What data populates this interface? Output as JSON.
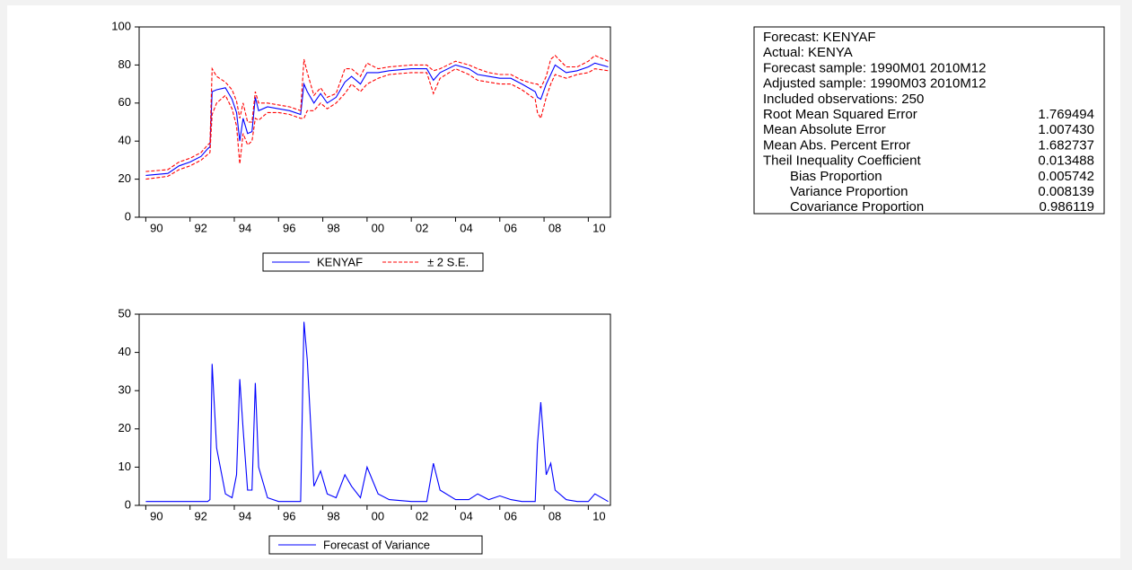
{
  "chart_data": [
    {
      "type": "line",
      "x": [
        1990.0,
        1991.0,
        1991.5,
        1992.0,
        1992.5,
        1992.8,
        1992.9,
        1993.0,
        1993.2,
        1993.6,
        1993.9,
        1994.1,
        1994.25,
        1994.4,
        1994.6,
        1994.8,
        1994.95,
        1995.1,
        1995.5,
        1996.0,
        1996.5,
        1997.0,
        1997.15,
        1997.3,
        1997.6,
        1997.9,
        1998.2,
        1998.6,
        1999.0,
        1999.3,
        1999.7,
        2000.0,
        2000.5,
        2001.0,
        2002.0,
        2002.7,
        2003.0,
        2003.3,
        2004.0,
        2004.6,
        2005.0,
        2005.5,
        2006.0,
        2006.5,
        2007.0,
        2007.6,
        2007.7,
        2007.85,
        2008.1,
        2008.3,
        2008.5,
        2009.0,
        2009.5,
        2010.0,
        2010.3,
        2010.9
      ],
      "series": [
        {
          "name": "KENYAF",
          "color": "#0000ff",
          "dash": false,
          "values": [
            22,
            23,
            27,
            29,
            32,
            36,
            37,
            66,
            67,
            68,
            62,
            55,
            40,
            52,
            44,
            45,
            63,
            56,
            58,
            57,
            56,
            54,
            70,
            66,
            60,
            65,
            60,
            63,
            71,
            74,
            70,
            76,
            76,
            77,
            78,
            78,
            72,
            76,
            80,
            78,
            75,
            74,
            73,
            73,
            70,
            66,
            63,
            62,
            70,
            75,
            80,
            76,
            77,
            79,
            81,
            79
          ]
        },
        {
          "name": "± 2 S.E.",
          "color": "#ff0000",
          "dash": true,
          "values": [
            24,
            25,
            29,
            31,
            34,
            38,
            39,
            78,
            74,
            71,
            67,
            61,
            52,
            60,
            50,
            50,
            66,
            60,
            60,
            59,
            58,
            56,
            83,
            76,
            64,
            68,
            63,
            65,
            78,
            78,
            74,
            81,
            78,
            79,
            80,
            80,
            77,
            78,
            82,
            80,
            78,
            76,
            75,
            75,
            72,
            70,
            70,
            68,
            74,
            83,
            85,
            79,
            79,
            82,
            85,
            82
          ]
        },
        {
          "color": "#ff0000",
          "dash": true,
          "values": [
            20,
            21.5,
            25,
            27,
            30,
            33,
            34,
            54,
            60,
            64,
            57,
            48,
            28,
            44,
            38,
            40,
            52,
            51,
            55,
            55,
            54,
            52,
            52,
            56,
            56,
            60,
            57,
            60,
            65,
            70,
            66,
            70,
            73,
            75,
            76,
            76,
            65,
            73,
            78,
            75,
            72,
            71,
            70,
            70,
            67,
            62,
            55,
            52,
            63,
            70,
            75,
            73,
            75,
            76,
            78,
            77
          ]
        }
      ],
      "xlim": [
        1989.7,
        2011.0
      ],
      "xticks": [
        {
          "value": 1990,
          "label": "90"
        },
        {
          "value": 1992,
          "label": "92"
        },
        {
          "value": 1994,
          "label": "94"
        },
        {
          "value": 1996,
          "label": "96"
        },
        {
          "value": 1998,
          "label": "98"
        },
        {
          "value": 2000,
          "label": "00"
        },
        {
          "value": 2002,
          "label": "02"
        },
        {
          "value": 2004,
          "label": "04"
        },
        {
          "value": 2006,
          "label": "06"
        },
        {
          "value": 2008,
          "label": "08"
        },
        {
          "value": 2010,
          "label": "10"
        }
      ],
      "ylim": [
        0,
        100
      ],
      "yticks": [
        0,
        20,
        40,
        60,
        80,
        100
      ]
    },
    {
      "type": "line",
      "x": [
        1990.0,
        1991.0,
        1991.5,
        1992.0,
        1992.5,
        1992.8,
        1992.9,
        1993.0,
        1993.2,
        1993.6,
        1993.9,
        1994.1,
        1994.25,
        1994.4,
        1994.6,
        1994.8,
        1994.95,
        1995.1,
        1995.5,
        1996.0,
        1996.5,
        1997.0,
        1997.15,
        1997.3,
        1997.6,
        1997.9,
        1998.2,
        1998.6,
        1999.0,
        1999.3,
        1999.7,
        2000.0,
        2000.5,
        2001.0,
        2002.0,
        2002.7,
        2003.0,
        2003.3,
        2004.0,
        2004.6,
        2005.0,
        2005.5,
        2006.0,
        2006.5,
        2007.0,
        2007.6,
        2007.7,
        2007.85,
        2008.1,
        2008.3,
        2008.5,
        2009.0,
        2009.5,
        2010.0,
        2010.3,
        2010.9
      ],
      "series": [
        {
          "name": "Forecast of Variance",
          "color": "#0000ff",
          "dash": false,
          "values": [
            1,
            1,
            1,
            1,
            1,
            1,
            1.5,
            37,
            15,
            3,
            2,
            8,
            33,
            20,
            4,
            4,
            32,
            10,
            2,
            1,
            1,
            1,
            48,
            38,
            5,
            9,
            3,
            2,
            8,
            5,
            2,
            10,
            3,
            1.5,
            1,
            1,
            11,
            4,
            1.5,
            1.5,
            3,
            1.5,
            2.5,
            1.5,
            1,
            1,
            16,
            27,
            8,
            11,
            4,
            1.5,
            1,
            1,
            3,
            1
          ]
        }
      ],
      "xlim": [
        1989.7,
        2011.0
      ],
      "xticks": [
        {
          "value": 1990,
          "label": "90"
        },
        {
          "value": 1992,
          "label": "92"
        },
        {
          "value": 1994,
          "label": "94"
        },
        {
          "value": 1996,
          "label": "96"
        },
        {
          "value": 1998,
          "label": "98"
        },
        {
          "value": 2000,
          "label": "00"
        },
        {
          "value": 2002,
          "label": "02"
        },
        {
          "value": 2004,
          "label": "04"
        },
        {
          "value": 2006,
          "label": "06"
        },
        {
          "value": 2008,
          "label": "08"
        },
        {
          "value": 2010,
          "label": "10"
        }
      ],
      "ylim": [
        0,
        50
      ],
      "yticks": [
        0,
        10,
        20,
        30,
        40,
        50
      ]
    }
  ],
  "table": {
    "rows": [
      {
        "label": "Forecast: KENYAF"
      },
      {
        "label": "Actual: KENYA"
      },
      {
        "label": "Forecast sample: 1990M01 2010M12"
      },
      {
        "label": "Adjusted sample: 1990M03 2010M12"
      },
      {
        "label": "Included observations: 250"
      },
      {
        "label": "Root Mean Squared Error",
        "value": "1.769494"
      },
      {
        "label": "Mean Absolute Error",
        "value": "1.007430"
      },
      {
        "label": "Mean Abs. Percent Error",
        "value": "1.682737"
      },
      {
        "label": "Theil Inequality Coefficient",
        "value": "0.013488"
      },
      {
        "label": "Bias Proportion",
        "value": "0.005742",
        "indent": true
      },
      {
        "label": "Variance Proportion",
        "value": "0.008139",
        "indent": true
      },
      {
        "label": "Covariance Proportion",
        "value": "0.986119",
        "indent": true
      }
    ]
  }
}
